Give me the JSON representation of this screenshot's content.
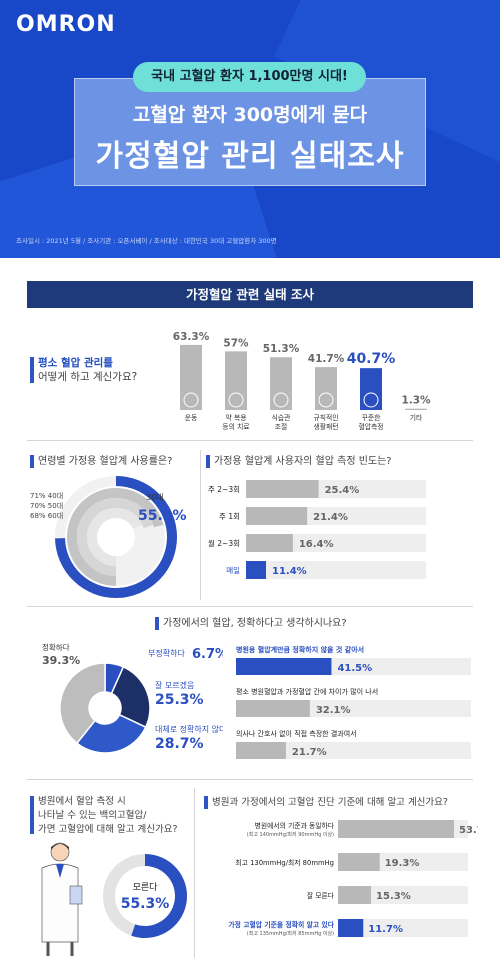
{
  "header": {
    "logo": "OMRON",
    "pill": "국내 고혈압 환자 1,100만명 시대!",
    "title_line1": "고혈압 환자 300명에게 묻다",
    "title_line2": "가정혈압 관리 실태조사",
    "meta": "조사일시 : 2021년 5월 / 조사기관 : 오픈서베이 / 조사대상 : 대한민국 30대 고혈압환자 300명"
  },
  "section_banner": "가정혈압 관련 실태 조사",
  "q1": {
    "question_line1": "평소 혈압 관리를",
    "question_line2": "어떻게 하고 계신가요?",
    "question_bold": "평소 혈압 관리"
  },
  "q2": {
    "question": "연령별 가정용 혈압계 사용률은?",
    "question_bold": "가정용 혈압계 사용률"
  },
  "q3": {
    "question": "가정용 혈압계 사용자의 혈압 측정 빈도는?",
    "question_bold": "혈압 측정 빈도"
  },
  "q4": {
    "question": "가정에서의 혈압, 정확하다고 생각하시나요?",
    "question_bold": "정확하다고 생각"
  },
  "q5": {
    "question_line1": "병원에서 혈압 측정 시",
    "question_line2": "나타날 수 있는 백의고혈압/",
    "question_line3": "가면 고혈압에 대해 알고 계신가요?"
  },
  "q6": {
    "question": "병원과 가정에서의 고혈압 진단 기준에 대해 알고 계신가요?",
    "question_bold": "고혈압 진단 기준"
  },
  "colors": {
    "blue": "#2a4fc0",
    "navy": "#1e3a7a",
    "gray": "#b8b8b8",
    "dark_navy": "#1c2f66"
  },
  "chart_data": [
    {
      "type": "bar",
      "id": "management",
      "categories": [
        "운동",
        "약 복용 등의 치료",
        "식습관 조절",
        "규칙적인 생활패턴",
        "꾸준한 혈압측정",
        "기타"
      ],
      "values": [
        63.3,
        57,
        51.3,
        41.7,
        40.7,
        1.3
      ],
      "value_labels": [
        "63.3%",
        "57%",
        "51.3%",
        "41.7%",
        "40.7%",
        "1.3%"
      ],
      "highlight": "꾸준한 혈압측정",
      "icons": [
        "bicycle-icon",
        "pill-icon",
        "bowl-icon",
        "clock-icon",
        "heart-pulse-icon",
        ""
      ]
    },
    {
      "type": "radial-bar",
      "id": "age_usage",
      "categories": [
        "30대",
        "40대",
        "50대",
        "60대"
      ],
      "values": [
        55.3,
        71,
        70,
        68
      ],
      "value_labels": [
        "55.3%",
        "71%",
        "70%",
        "68%"
      ]
    },
    {
      "type": "bar",
      "id": "frequency",
      "categories": [
        "주 2~3회",
        "주 1회",
        "월 2~3회",
        "매일"
      ],
      "values": [
        25.4,
        21.4,
        16.4,
        11.4
      ],
      "value_labels": [
        "25.4%",
        "21.4%",
        "16.4%",
        "11.4%"
      ],
      "highlight": "매일"
    },
    {
      "type": "pie",
      "id": "accuracy",
      "categories": [
        "부정확하다",
        "잘 모르겠음",
        "대체로 정확하지 않다",
        "정확하다"
      ],
      "values": [
        6.7,
        25.3,
        28.7,
        39.3
      ],
      "value_labels": [
        "6.7%",
        "25.3%",
        "28.7%",
        "39.3%"
      ]
    },
    {
      "type": "bar",
      "id": "inaccuracy_reasons",
      "categories": [
        "병원용 혈압계만큼 정확하지 않을 것 같아서",
        "평소 병원혈압과 가정혈압 간에 차이가 많이 나서",
        "의사나 간호사 없이 직접 측정한 결과여서"
      ],
      "values": [
        41.5,
        32.1,
        21.7
      ],
      "value_labels": [
        "41.5%",
        "32.1%",
        "21.7%"
      ],
      "highlight": "병원용 혈압계만큼 정확하지 않을 것 같아서"
    },
    {
      "type": "pie",
      "id": "white_coat",
      "categories": [
        "모른다"
      ],
      "values": [
        55.3
      ],
      "value_labels": [
        "55.3%"
      ]
    },
    {
      "type": "bar",
      "id": "criteria",
      "categories": [
        "병원에서의 기준과 동일하다",
        "최고 130mmHg/최저 80mmHg",
        "잘 모른다",
        "가정 고혈압 기준을 정확히 알고 있다"
      ],
      "sublabels": [
        "(최고 140mmHg/최저 90mmHg 이상)",
        "",
        "",
        "(최고 135mmHg/최저 85mmHg 이상)"
      ],
      "values": [
        53.7,
        19.3,
        15.3,
        11.7
      ],
      "value_labels": [
        "53.7%",
        "19.3%",
        "15.3%",
        "11.7%"
      ],
      "highlight": "가정 고혈압 기준을 정확히 알고 있다"
    }
  ]
}
